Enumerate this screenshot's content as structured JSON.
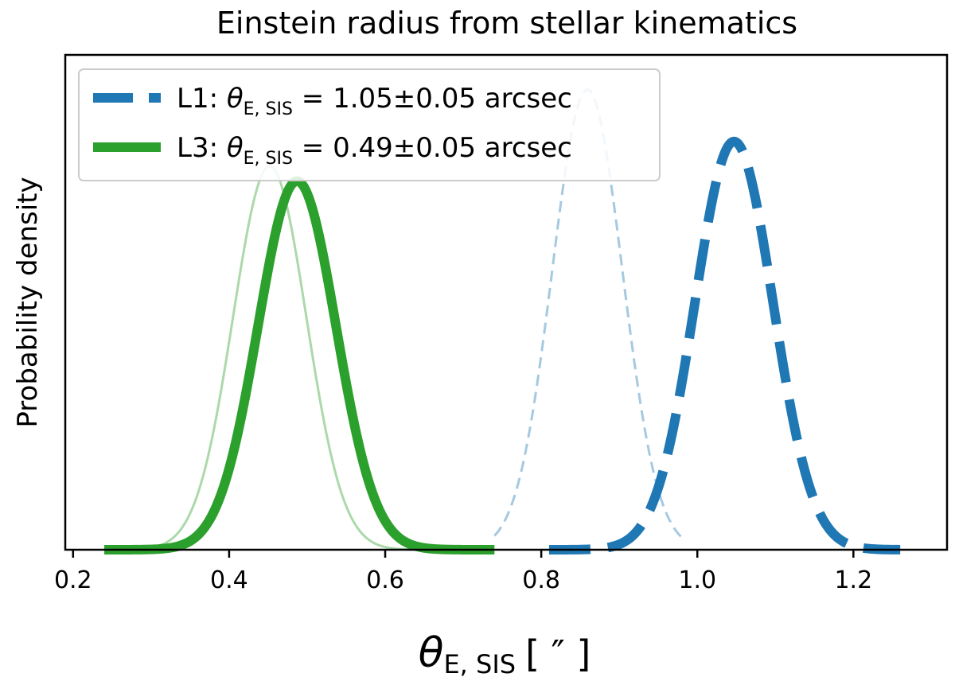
{
  "chart_data": {
    "type": "line",
    "title": "Einstein radius from stellar kinematics",
    "xlabel": {
      "symbol": "θ",
      "subscript": "E, SIS",
      "unit": "[ ″ ]"
    },
    "ylabel": "Probability density",
    "xlim": [
      0.19,
      1.32
    ],
    "ylim": [
      0,
      1.0
    ],
    "xticks": [
      0.2,
      0.4,
      0.6,
      0.8,
      1.0,
      1.2
    ],
    "xtick_labels": [
      "0.2",
      "0.4",
      "0.6",
      "0.8",
      "1.0",
      "1.2"
    ],
    "grid": false,
    "legend_position": "top-left",
    "series": [
      {
        "name": "L1",
        "legend_prefix": "L1: ",
        "legend_symbol": "θ",
        "legend_subscript": "E, SIS",
        "legend_value": " = 1.05±0.05 arcsec",
        "mean": 1.047,
        "sigma": 0.05,
        "peak": 0.825,
        "range": [
          0.81,
          1.26
        ],
        "style": "dashed-thick",
        "color": "#1f77b4",
        "opacity": 1.0
      },
      {
        "name": "L3",
        "legend_prefix": "L3: ",
        "legend_symbol": "θ",
        "legend_subscript": "E, SIS",
        "legend_value": " = 0.49±0.05 arcsec",
        "mean": 0.487,
        "sigma": 0.05,
        "peak": 0.745,
        "range": [
          0.24,
          0.74
        ],
        "style": "solid-thick",
        "color": "#2ca02c",
        "opacity": 1.0
      },
      {
        "name": "",
        "mean": 0.859,
        "sigma": 0.045,
        "peak": 0.93,
        "range": [
          0.74,
          0.98
        ],
        "style": "dashed-thin",
        "color": "#1f77b4",
        "opacity": 0.4
      },
      {
        "name": "",
        "mean": 0.452,
        "sigma": 0.047,
        "peak": 0.775,
        "range": [
          0.24,
          0.68
        ],
        "style": "solid-thin",
        "color": "#2ca02c",
        "opacity": 0.4
      }
    ]
  }
}
